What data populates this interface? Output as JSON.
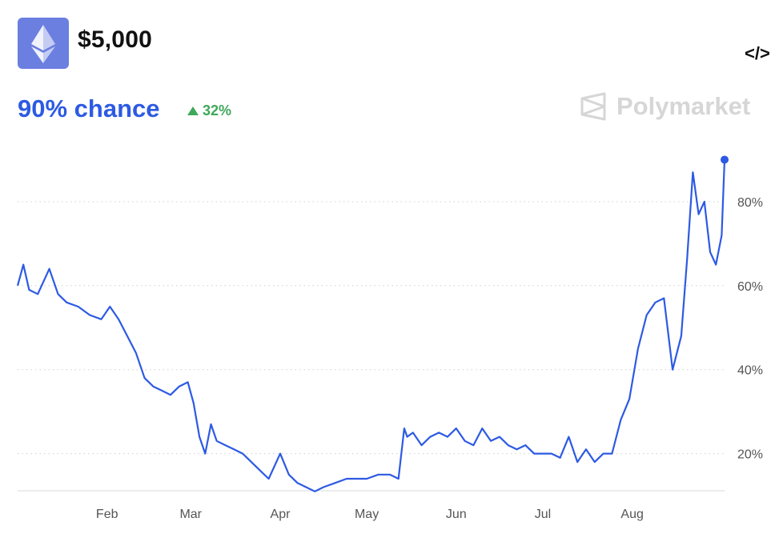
{
  "header": {
    "logo_icon": "ethereum-icon",
    "price": "$5,000",
    "chance": "90% chance",
    "change": "32%",
    "change_icon": "triangle-up-icon",
    "embed_icon": "code-icon",
    "embed_label": "</>",
    "brand": "Polymarket",
    "brand_icon": "polymarket-logo-icon"
  },
  "colors": {
    "line": "#2d5ae3",
    "accent": "#2d5ae3",
    "positive": "#3fa85b",
    "logo_bg": "#6b7fe0"
  },
  "chart_data": {
    "type": "line",
    "x_ticks": [
      "Feb",
      "Mar",
      "Apr",
      "May",
      "Jun",
      "Jul",
      "Aug"
    ],
    "y_ticks": [
      "20%",
      "40%",
      "60%",
      "80%"
    ],
    "y_tick_values": [
      20,
      40,
      60,
      80
    ],
    "ylim": [
      6,
      96
    ],
    "grid": "horizontal dotted",
    "series": [
      {
        "x": [
          "Jan 1",
          "Jan 3",
          "Jan 5",
          "Jan 8",
          "Jan 12",
          "Jan 15",
          "Jan 18",
          "Jan 22",
          "Jan 26",
          "Jan 30",
          "Feb 2",
          "Feb 5",
          "Feb 8",
          "Feb 11",
          "Feb 14",
          "Feb 17",
          "Feb 20",
          "Feb 23",
          "Feb 26",
          "Feb 29",
          "Mar 2",
          "Mar 4",
          "Mar 6",
          "Mar 8",
          "Mar 10",
          "Mar 13",
          "Mar 16",
          "Mar 19",
          "Mar 22",
          "Mar 25",
          "Mar 28",
          "Apr 1",
          "Apr 4",
          "Apr 7",
          "Apr 10",
          "Apr 13",
          "Apr 16",
          "Apr 20",
          "Apr 24",
          "Apr 28",
          "May 1",
          "May 5",
          "May 9",
          "May 12",
          "May 14",
          "May 15",
          "May 17",
          "May 20",
          "May 23",
          "May 26",
          "May 29",
          "Jun 1",
          "Jun 4",
          "Jun 7",
          "Jun 10",
          "Jun 13",
          "Jun 16",
          "Jun 19",
          "Jun 22",
          "Jun 25",
          "Jun 28",
          "Jul 1",
          "Jul 4",
          "Jul 7",
          "Jul 10",
          "Jul 13",
          "Jul 16",
          "Jul 19",
          "Jul 22",
          "Jul 25",
          "Jul 28",
          "Jul 31",
          "Aug 3",
          "Aug 6",
          "Aug 9",
          "Aug 12",
          "Aug 15",
          "Aug 18",
          "Aug 20",
          "Aug 22",
          "Aug 24",
          "Aug 26",
          "Aug 28",
          "Aug 30",
          "Sep 1",
          "Sep 2"
        ],
        "values": [
          60,
          65,
          59,
          58,
          64,
          58,
          56,
          55,
          53,
          52,
          55,
          52,
          48,
          44,
          38,
          36,
          35,
          34,
          36,
          37,
          32,
          24,
          20,
          27,
          23,
          22,
          21,
          20,
          18,
          16,
          14,
          20,
          15,
          13,
          12,
          11,
          12,
          13,
          14,
          14,
          14,
          15,
          15,
          14,
          26,
          24,
          25,
          22,
          24,
          25,
          24,
          26,
          23,
          22,
          26,
          23,
          24,
          22,
          21,
          22,
          20,
          20,
          20,
          19,
          24,
          18,
          21,
          18,
          20,
          20,
          28,
          33,
          45,
          53,
          56,
          57,
          40,
          48,
          66,
          87,
          77,
          80,
          68,
          65,
          72,
          90
        ]
      }
    ]
  }
}
